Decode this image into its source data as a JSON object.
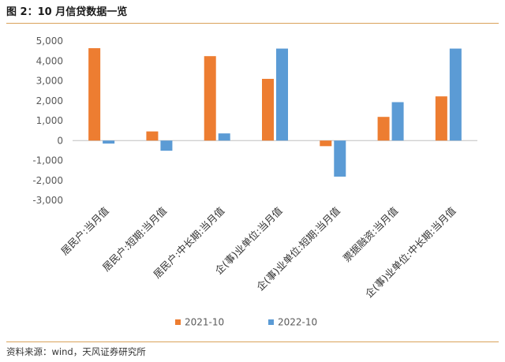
{
  "header": {
    "title": "图 2：10 月信贷数据一览"
  },
  "footer": {
    "source": "资料来源：wind，天风证券研究所"
  },
  "chart_data": {
    "type": "bar",
    "title": "",
    "xlabel": "",
    "ylabel": "",
    "ylim": [
      -3000,
      5000
    ],
    "yticks": [
      5000,
      4000,
      3000,
      2000,
      1000,
      0,
      -1000,
      -2000,
      -3000
    ],
    "ytick_labels": [
      "5,000",
      "4,000",
      "3,000",
      "2,000",
      "1,000",
      "0",
      "-1,000",
      "-2,000",
      "-3,000"
    ],
    "grid": false,
    "legend_position": "bottom",
    "categories": [
      "居民户:当月值",
      "居民户:短期:当月值",
      "居民户:中长期:当月值",
      "企(事)业单位:当月值",
      "企(事)业单位:短期:当月值",
      "票据融资:当月值",
      "企(事)业单位:中长期:当月值"
    ],
    "series": [
      {
        "name": "2021-10",
        "color": "#ed7d31",
        "values": [
          4640,
          460,
          4240,
          3100,
          -280,
          1190,
          2220
        ]
      },
      {
        "name": "2022-10",
        "color": "#5b9bd5",
        "values": [
          -150,
          -510,
          360,
          4620,
          -1810,
          1930,
          4620
        ]
      }
    ]
  }
}
